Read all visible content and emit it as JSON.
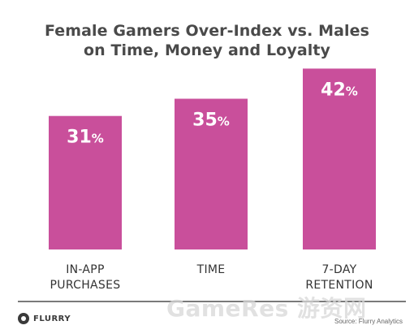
{
  "title_lines": [
    "Female Gamers Over-Index vs. Males",
    "on Time, Money and Loyalty"
  ],
  "colors": {
    "bar": "#c94f9b",
    "bar_label": "#ffffff",
    "axis_label": "#333333",
    "title": "#4a4a4a"
  },
  "chart_data": {
    "type": "bar",
    "title": "Female Gamers Over-Index vs. Males on Time, Money and Loyalty",
    "categories": [
      [
        "IN-APP",
        "PURCHASES"
      ],
      [
        "TIME"
      ],
      [
        "7-DAY",
        "RETENTION"
      ]
    ],
    "values": [
      31,
      35,
      42
    ],
    "value_labels": [
      "31",
      "35",
      "42"
    ],
    "unit": "%",
    "xlabel": "",
    "ylabel": "",
    "ylim": [
      0,
      50
    ],
    "grid": false,
    "legend": "none"
  },
  "footer": {
    "logo_text": "FLURRY",
    "source": "Source: Flurry Analytics",
    "watermark": "GameRes 游资网"
  }
}
